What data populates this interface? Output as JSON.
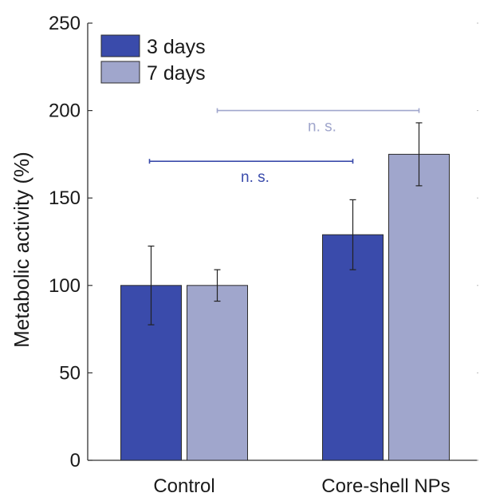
{
  "chart_data": {
    "type": "bar",
    "title": "",
    "xlabel": "",
    "ylabel": "Metabolic activity (%)",
    "ylim": [
      0,
      250
    ],
    "yticks": [
      0,
      50,
      100,
      150,
      200,
      250
    ],
    "grid": false,
    "legend_position": "top-left",
    "categories": [
      "Control",
      "Core-shell NPs"
    ],
    "series": [
      {
        "name": "3 days",
        "color": "#3a4bab",
        "values": [
          100,
          129
        ],
        "errors": [
          22.5,
          20
        ]
      },
      {
        "name": "7 days",
        "color": "#a0a6cc",
        "values": [
          100,
          175
        ],
        "errors": [
          9,
          18
        ]
      }
    ],
    "annotations": [
      {
        "text": "n. s.",
        "color": "#3a4bab",
        "from": "Control",
        "to": "Core-shell NPs",
        "series": "3 days",
        "y": 171
      },
      {
        "text": "n. s.",
        "color": "#a0a6cc",
        "from": "Control",
        "to": "Core-shell NPs",
        "series": "7 days",
        "y": 200
      }
    ]
  }
}
